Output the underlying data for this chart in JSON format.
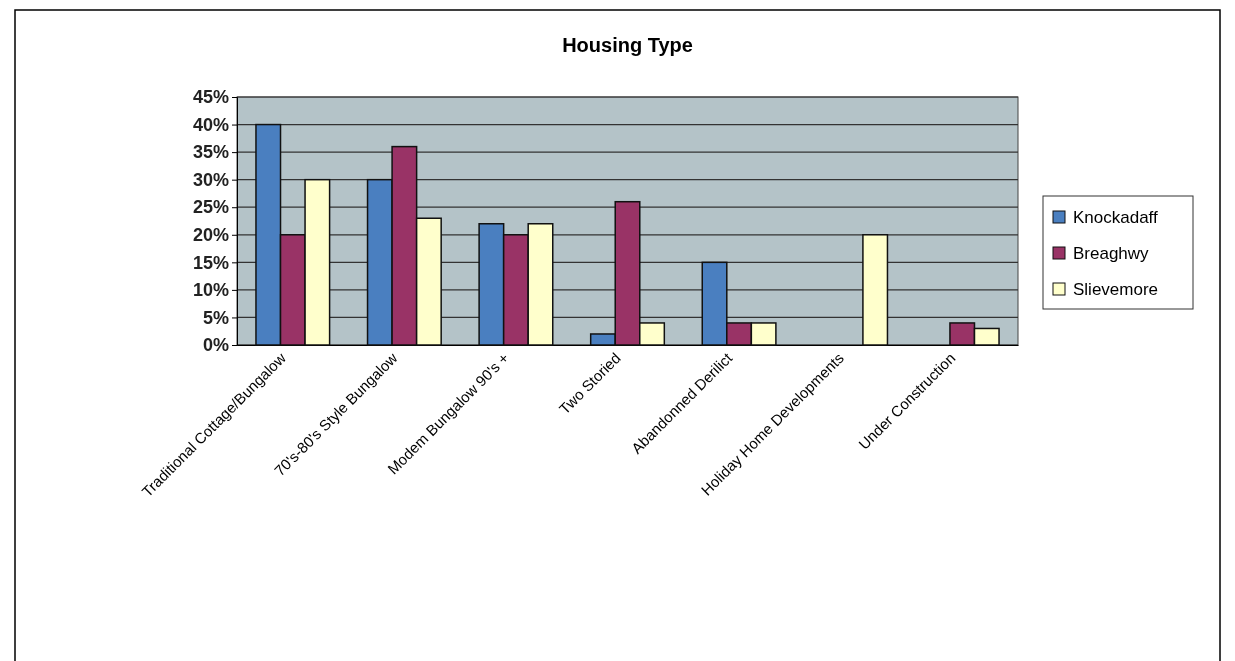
{
  "chart_data": {
    "type": "bar",
    "title": "Housing Type",
    "categories": [
      "Traditional Cottage/Bungalow",
      "70's-80's Style Bungalow",
      "Modem Bungalow 90's +",
      "Two Storied",
      "Abandonned Derilict",
      "Holiday Home Developments",
      "Under Construction"
    ],
    "series": [
      {
        "name": "Knockadaff",
        "color": "#4a7fc0",
        "values": [
          40,
          30,
          22,
          2,
          15,
          0,
          0
        ]
      },
      {
        "name": "Breaghwy",
        "color": "#993366",
        "values": [
          20,
          36,
          20,
          26,
          4,
          0,
          4
        ]
      },
      {
        "name": "Slievemore",
        "color": "#ffffcc",
        "values": [
          30,
          23,
          22,
          4,
          4,
          20,
          3
        ]
      }
    ],
    "ylim": [
      0,
      45
    ],
    "yticks": [
      {
        "value": 0,
        "label": "0%"
      },
      {
        "value": 5,
        "label": "5%"
      },
      {
        "value": 10,
        "label": "10%"
      },
      {
        "value": 15,
        "label": "15%"
      },
      {
        "value": 20,
        "label": "20%"
      },
      {
        "value": 25,
        "label": "25%"
      },
      {
        "value": 30,
        "label": "30%"
      },
      {
        "value": 35,
        "label": "35%"
      },
      {
        "value": 40,
        "label": "40%"
      },
      {
        "value": 45,
        "label": "45%"
      }
    ],
    "grid": "y",
    "legend": "right"
  }
}
